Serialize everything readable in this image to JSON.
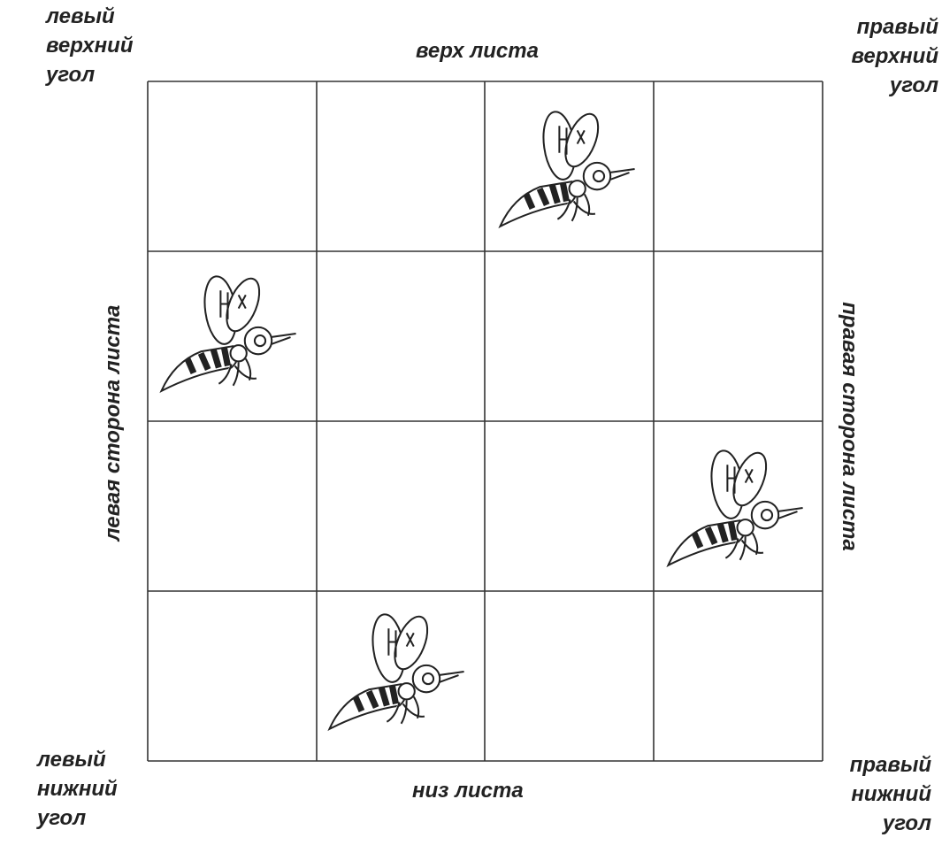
{
  "corners": {
    "top_left": [
      "левый",
      "верхний",
      "угол"
    ],
    "top_right": [
      "правый",
      "верхний",
      "угол"
    ],
    "bottom_left": [
      "левый",
      "нижний",
      "угол"
    ],
    "bottom_right": [
      "правый",
      "нижний",
      "угол"
    ]
  },
  "sides": {
    "top": "верх листа",
    "bottom": "низ листа",
    "left": "левая сторона листа",
    "right": "правая сторона листа"
  }
}
